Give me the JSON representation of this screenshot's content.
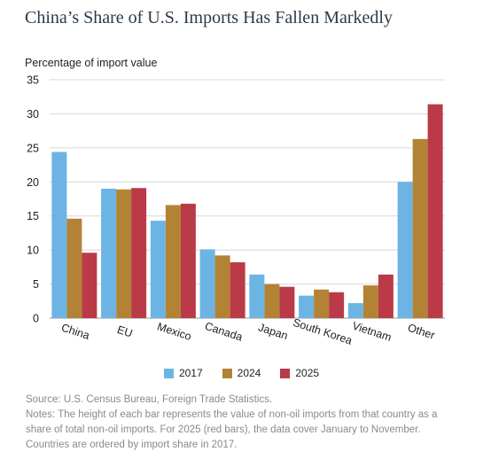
{
  "title": "China’s Share of U.S. Imports Has Fallen Markedly",
  "source": "Source: U.S. Census Bureau, Foreign Trade Statistics.",
  "notes": "Notes: The height of each bar represents the value of non-oil imports from that country as a share of total non-oil imports. For 2025 (red bars), the data cover January to November. Countries are ordered by import share in 2017.",
  "colors": {
    "2017": "#6cb4e4",
    "2024": "#b38335",
    "2025": "#bb3a47"
  },
  "chart_data": {
    "type": "bar",
    "title": "China’s Share of U.S. Imports Has Fallen Markedly",
    "ylabel": "Percentage of import value",
    "xlabel": "",
    "ylim": [
      0,
      35
    ],
    "yticks": [
      0,
      5,
      10,
      15,
      20,
      25,
      30,
      35
    ],
    "grid": true,
    "legend": "bottom-center",
    "categories": [
      "China",
      "EU",
      "Mexico",
      "Canada",
      "Japan",
      "South Korea",
      "Vietnam",
      "Other"
    ],
    "series": [
      {
        "name": "2017",
        "values": [
          24.4,
          19.0,
          14.3,
          10.1,
          6.4,
          3.3,
          2.2,
          20.0
        ]
      },
      {
        "name": "2024",
        "values": [
          14.6,
          18.9,
          16.6,
          9.2,
          5.0,
          4.2,
          4.8,
          26.3
        ]
      },
      {
        "name": "2025",
        "values": [
          9.6,
          19.1,
          16.8,
          8.2,
          4.6,
          3.8,
          6.4,
          31.4
        ]
      }
    ]
  }
}
